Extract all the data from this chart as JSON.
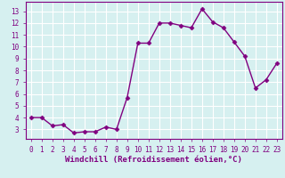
{
  "x": [
    0,
    1,
    2,
    3,
    4,
    5,
    6,
    7,
    8,
    9,
    10,
    11,
    12,
    13,
    14,
    15,
    16,
    17,
    18,
    19,
    20,
    21,
    22,
    23
  ],
  "y": [
    4.0,
    4.0,
    3.3,
    3.4,
    2.7,
    2.8,
    2.8,
    3.2,
    3.0,
    5.7,
    10.3,
    10.3,
    12.0,
    12.0,
    11.8,
    11.6,
    13.2,
    12.1,
    11.6,
    10.4,
    9.2,
    6.5,
    7.2,
    8.6
  ],
  "line_color": "#800080",
  "marker": "D",
  "marker_size": 2.5,
  "linewidth": 1.0,
  "xlabel": "Windchill (Refroidissement éolien,°C)",
  "ylabel": "",
  "xlim": [
    -0.5,
    23.5
  ],
  "ylim": [
    2.2,
    13.8
  ],
  "yticks": [
    3,
    4,
    5,
    6,
    7,
    8,
    9,
    10,
    11,
    12,
    13
  ],
  "xticks": [
    0,
    1,
    2,
    3,
    4,
    5,
    6,
    7,
    8,
    9,
    10,
    11,
    12,
    13,
    14,
    15,
    16,
    17,
    18,
    19,
    20,
    21,
    22,
    23
  ],
  "background_color": "#d6f0f0",
  "grid_color": "#b8d8d8",
  "tick_color": "#800080",
  "label_color": "#800080",
  "tick_fontsize": 5.5,
  "xlabel_fontsize": 6.5
}
